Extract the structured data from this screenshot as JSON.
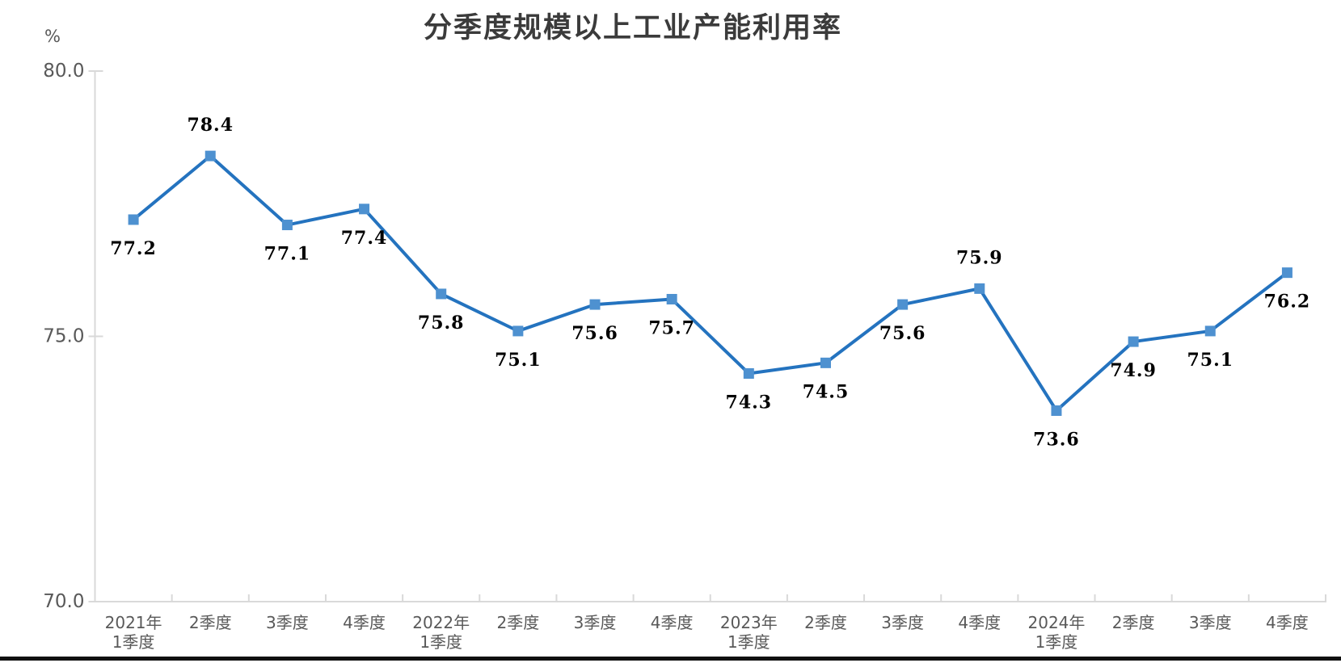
{
  "chart_data": {
    "type": "line",
    "title": "分季度规模以上工业产能利用率",
    "unit": "%",
    "categories": [
      [
        "2021年",
        "1季度"
      ],
      [
        "2季度"
      ],
      [
        "3季度"
      ],
      [
        "4季度"
      ],
      [
        "2022年",
        "1季度"
      ],
      [
        "2季度"
      ],
      [
        "3季度"
      ],
      [
        "4季度"
      ],
      [
        "2023年",
        "1季度"
      ],
      [
        "2季度"
      ],
      [
        "3季度"
      ],
      [
        "4季度"
      ],
      [
        "2024年",
        "1季度"
      ],
      [
        "2季度"
      ],
      [
        "3季度"
      ],
      [
        "4季度"
      ]
    ],
    "values": [
      77.2,
      78.4,
      77.1,
      77.4,
      75.8,
      75.1,
      75.6,
      75.7,
      74.3,
      74.5,
      75.6,
      75.9,
      73.6,
      74.9,
      75.1,
      76.2
    ],
    "point_labels": [
      "77.2",
      "78.4",
      "77.1",
      "77.4",
      "75.8",
      "75.1",
      "75.6",
      "75.7",
      "74.3",
      "74.5",
      "75.6",
      "75.9",
      "73.6",
      "74.9",
      "75.1",
      "76.2"
    ],
    "label_sides": [
      "below",
      "above",
      "below",
      "below",
      "below",
      "below",
      "below",
      "below",
      "below",
      "below",
      "below",
      "above",
      "below",
      "below",
      "below",
      "below"
    ],
    "y_ticks": [
      {
        "value": 80,
        "label": "80.0"
      },
      {
        "value": 75,
        "label": "75.0"
      },
      {
        "value": 70,
        "label": "70.0"
      }
    ],
    "ylim": [
      70,
      80
    ],
    "grid": false,
    "legend": false,
    "colors": {
      "line": "#2473BF",
      "marker": "#4E91D0",
      "axis": "#D9D9D9",
      "tick_text": "#595959",
      "point_label": "#000000",
      "title_text": "#3B3B3B",
      "bottom_bar": "#111111"
    }
  }
}
